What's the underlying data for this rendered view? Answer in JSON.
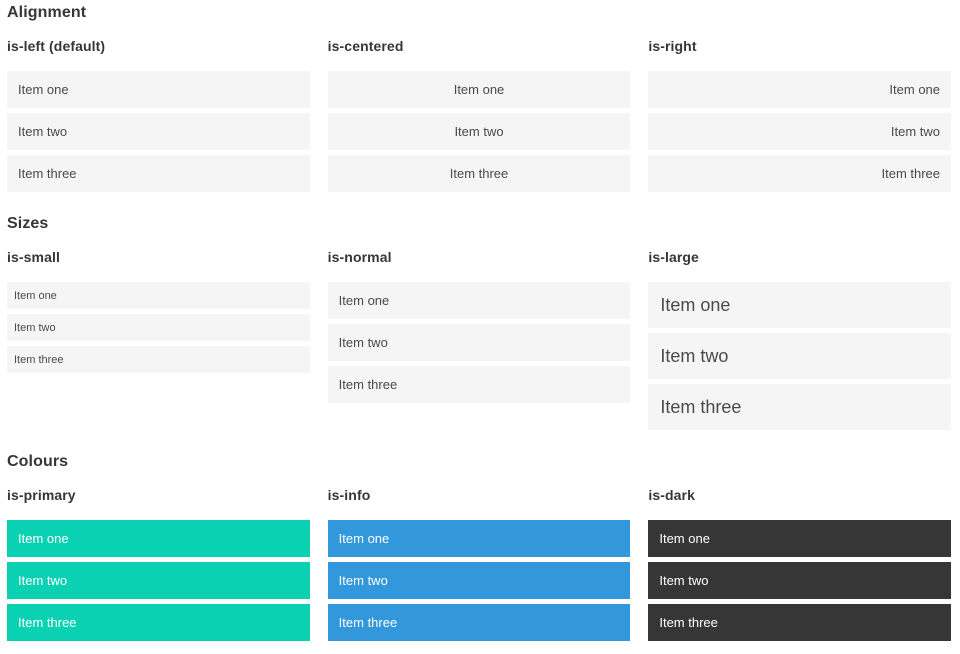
{
  "colors": {
    "primary": "#0ad1b2",
    "info": "#3398db",
    "dark": "#363636",
    "item-bg": "#f5f5f5",
    "item-text": "#4a4a4a",
    "item-text-light": "#ffffff",
    "heading-text": "#363636"
  },
  "sections": [
    {
      "title": "Alignment",
      "groups": [
        {
          "label": "is-left (default)",
          "items": [
            "Item one",
            "Item two",
            "Item three"
          ]
        },
        {
          "label": "is-centered",
          "items": [
            "Item one",
            "Item two",
            "Item three"
          ]
        },
        {
          "label": "is-right",
          "items": [
            "Item one",
            "Item two",
            "Item three"
          ]
        }
      ]
    },
    {
      "title": "Sizes",
      "groups": [
        {
          "label": "is-small",
          "items": [
            "Item one",
            "Item two",
            "Item three"
          ]
        },
        {
          "label": "is-normal",
          "items": [
            "Item one",
            "Item two",
            "Item three"
          ]
        },
        {
          "label": "is-large",
          "items": [
            "Item one",
            "Item two",
            "Item three"
          ]
        }
      ]
    },
    {
      "title": "Colours",
      "groups": [
        {
          "label": "is-primary",
          "items": [
            "Item one",
            "Item two",
            "Item three"
          ]
        },
        {
          "label": "is-info",
          "items": [
            "Item one",
            "Item two",
            "Item three"
          ]
        },
        {
          "label": "is-dark",
          "items": [
            "Item one",
            "Item two",
            "Item three"
          ]
        }
      ]
    }
  ]
}
